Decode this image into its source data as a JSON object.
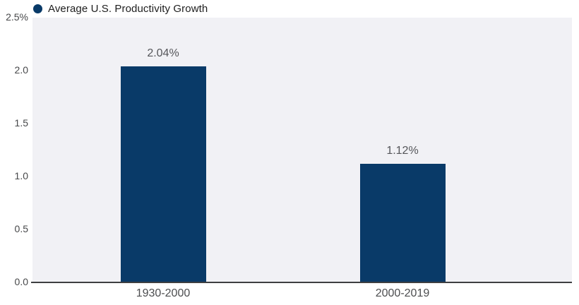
{
  "legend": {
    "label": "Average U.S. Productivity Growth",
    "dot_color": "#093a68"
  },
  "chart_data": {
    "type": "bar",
    "title": "",
    "legend": [
      "Average U.S. Productivity Growth"
    ],
    "categories": [
      "1930-2000",
      "2000-2019"
    ],
    "values": [
      2.04,
      1.12
    ],
    "value_labels": [
      "2.04%",
      "1.12%"
    ],
    "ylabel": "",
    "xlabel": "",
    "ylim": [
      0,
      2.5
    ],
    "yticks": [
      "2.5%",
      "2.0",
      "1.5",
      "1.0",
      "0.5",
      "0.0"
    ],
    "ytick_values": [
      2.5,
      2.0,
      1.5,
      1.0,
      0.5,
      0.0
    ],
    "grid": false,
    "legend_position": "top-left",
    "bar_color": "#093a68",
    "plot_bg": "#f1f1f5",
    "axis_line_color": "#3e3f41"
  }
}
